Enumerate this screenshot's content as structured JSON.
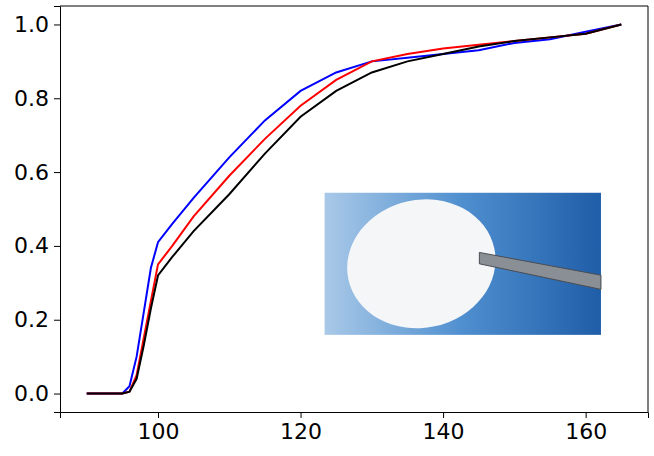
{
  "chart_data": {
    "type": "line",
    "x": [
      90,
      95,
      96,
      97,
      98,
      99,
      100,
      102,
      105,
      110,
      115,
      120,
      125,
      130,
      135,
      140,
      145,
      150,
      155,
      160,
      165
    ],
    "series": [
      {
        "color": "#0000ff",
        "values": [
          0,
          0,
          0.02,
          0.1,
          0.22,
          0.34,
          0.41,
          0.46,
          0.53,
          0.64,
          0.74,
          0.82,
          0.87,
          0.9,
          0.91,
          0.92,
          0.93,
          0.95,
          0.96,
          0.98,
          1.0
        ]
      },
      {
        "color": "#ff0000",
        "values": [
          0,
          0,
          0.005,
          0.05,
          0.15,
          0.25,
          0.35,
          0.4,
          0.48,
          0.59,
          0.69,
          0.78,
          0.85,
          0.9,
          0.92,
          0.935,
          0.945,
          0.955,
          0.965,
          0.975,
          1.0
        ]
      },
      {
        "color": "#000000",
        "values": [
          0,
          0,
          0.005,
          0.04,
          0.13,
          0.23,
          0.32,
          0.37,
          0.44,
          0.54,
          0.65,
          0.75,
          0.82,
          0.87,
          0.9,
          0.92,
          0.94,
          0.955,
          0.965,
          0.975,
          1.0
        ]
      }
    ],
    "xlim": [
      86.25,
      168.75
    ],
    "xticks": [
      100,
      120,
      140,
      160
    ],
    "ylim": [
      -0.05,
      1.05
    ],
    "yticks": [
      {
        "value": 0,
        "label": "0.0"
      },
      {
        "value": 0.2,
        "label": "0.2"
      },
      {
        "value": 0.4,
        "label": "0.4"
      },
      {
        "value": 0.6,
        "label": "0.6"
      },
      {
        "value": 0.8,
        "label": "0.8"
      },
      {
        "value": 1.0,
        "label": "1.0"
      }
    ],
    "grid": false
  }
}
